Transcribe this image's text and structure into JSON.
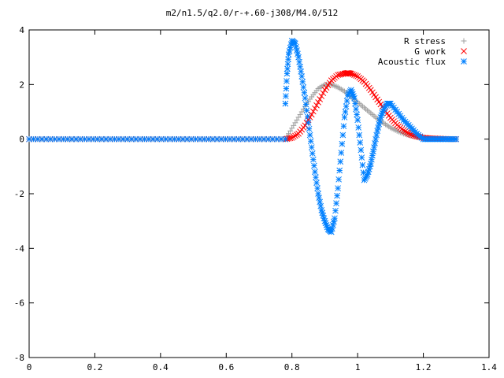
{
  "chart_data": {
    "type": "scatter",
    "title": "m2/n1.5/q2.0/r-+.60-j308/M4.0/512",
    "xlabel": "",
    "ylabel": "",
    "xlim": [
      0,
      1.4
    ],
    "ylim": [
      -8,
      4
    ],
    "x_ticks": [
      "0",
      "0.2",
      "0.4",
      "0.6",
      "0.8",
      "1",
      "1.2",
      "1.4"
    ],
    "y_ticks": [
      "4",
      "2",
      "0",
      "-2",
      "-4",
      "-6",
      "-8"
    ],
    "grid": false,
    "legend_position": "top-right",
    "series": [
      {
        "name": "R stress",
        "marker": "plus",
        "color": "#a0a0a0",
        "x": [
          0.78,
          0.8,
          0.82,
          0.84,
          0.86,
          0.88,
          0.9,
          0.92,
          0.94,
          0.96,
          0.98,
          1.0,
          1.02,
          1.04,
          1.06,
          1.08,
          1.1,
          1.12,
          1.14,
          1.16,
          1.18,
          1.2,
          1.22,
          1.24,
          1.26,
          1.28,
          1.3
        ],
        "y": [
          0.0,
          0.4,
          0.8,
          1.2,
          1.55,
          1.85,
          2.0,
          2.0,
          1.9,
          1.75,
          1.55,
          1.35,
          1.15,
          0.95,
          0.75,
          0.58,
          0.42,
          0.3,
          0.2,
          0.13,
          0.08,
          0.05,
          0.03,
          0.02,
          0.01,
          0.0,
          0.0
        ]
      },
      {
        "name": "G work",
        "marker": "cross",
        "color": "#ff0000",
        "x": [
          0.78,
          0.8,
          0.82,
          0.84,
          0.86,
          0.88,
          0.9,
          0.92,
          0.94,
          0.96,
          0.97,
          0.98,
          1.0,
          1.02,
          1.04,
          1.06,
          1.08,
          1.1,
          1.12,
          1.14,
          1.16,
          1.18,
          1.2,
          1.22,
          1.24,
          1.26,
          1.28,
          1.3
        ],
        "y": [
          0.0,
          0.05,
          0.2,
          0.5,
          0.9,
          1.35,
          1.8,
          2.15,
          2.35,
          2.4,
          2.42,
          2.4,
          2.3,
          2.1,
          1.8,
          1.45,
          1.1,
          0.78,
          0.52,
          0.32,
          0.18,
          0.1,
          0.05,
          0.03,
          0.02,
          0.01,
          0.0,
          0.0
        ]
      },
      {
        "name": "Acoustic flux",
        "marker": "star",
        "color": "#0080ff",
        "x": [
          0.78,
          0.785,
          0.79,
          0.8,
          0.81,
          0.82,
          0.83,
          0.84,
          0.85,
          0.86,
          0.87,
          0.88,
          0.89,
          0.9,
          0.91,
          0.92,
          0.93,
          0.94,
          0.95,
          0.96,
          0.97,
          0.98,
          0.99,
          1.0,
          1.01,
          1.02,
          1.03,
          1.04,
          1.05,
          1.06,
          1.07,
          1.08,
          1.09,
          1.1,
          1.12,
          1.14,
          1.16,
          1.18,
          1.2,
          1.22,
          1.24,
          1.26,
          1.28,
          1.3
        ],
        "y": [
          1.3,
          2.4,
          3.1,
          3.6,
          3.5,
          3.0,
          2.3,
          1.5,
          0.6,
          -0.3,
          -1.2,
          -2.0,
          -2.6,
          -3.0,
          -3.3,
          -3.4,
          -2.9,
          -1.8,
          -0.5,
          0.8,
          1.6,
          1.8,
          1.5,
          0.7,
          -0.4,
          -1.5,
          -1.3,
          -0.9,
          -0.3,
          0.3,
          0.8,
          1.1,
          1.3,
          1.3,
          1.0,
          0.7,
          0.45,
          0.2,
          0.0,
          0.0,
          0.0,
          0.0,
          0.0,
          0.0
        ]
      }
    ]
  }
}
